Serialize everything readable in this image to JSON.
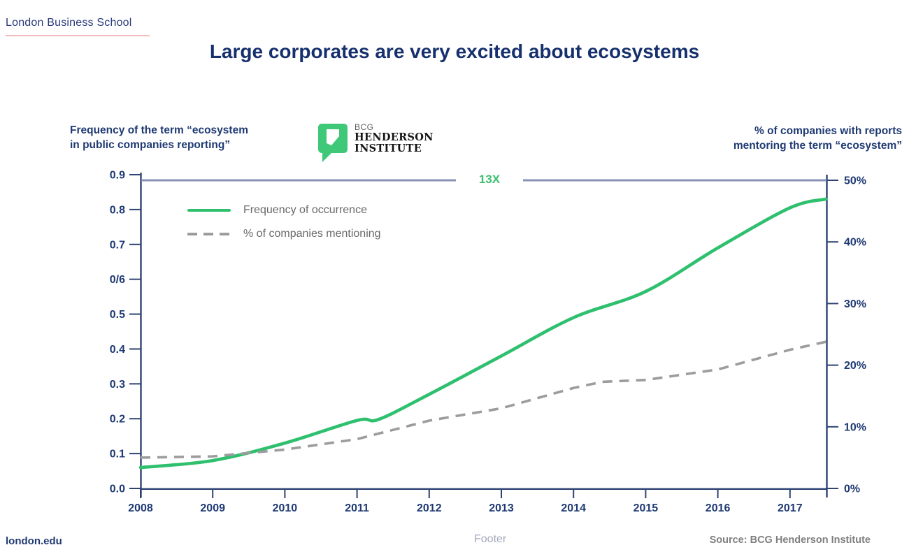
{
  "slide": {
    "brand": "London Business School",
    "title": "Large corporates are very excited about ecosystems"
  },
  "bhi_logo": {
    "icon": "bcg-henderson-institute-logo",
    "line1": "BCG",
    "line2": "HENDERSON",
    "line3": "INSTITUTE",
    "green": "#3ec878"
  },
  "footer": {
    "left": "london.edu",
    "center": "Footer",
    "right": "Source: BCG Henderson Institute"
  },
  "colors": {
    "axis": "#2e4372",
    "tick_label": "#1f3a73",
    "bracket_line": "#8792b5",
    "legend_text": "#696969"
  },
  "chart_data": {
    "type": "line",
    "left_axis_title": [
      "Frequency of the term “ecosystem",
      "in public companies reporting”"
    ],
    "right_axis_title": [
      "% of companies with reports",
      "mentoring the term “ecosystem”"
    ],
    "annotation": {
      "text": "13X",
      "color": "#3cc06e"
    },
    "grid": false,
    "legend_position": "top-left-inside",
    "xlim": [
      2008,
      2017.5
    ],
    "x_ticks": [
      2008,
      2009,
      2010,
      2011,
      2012,
      2013,
      2014,
      2015,
      2016,
      2017
    ],
    "left_axis": {
      "lim": [
        0,
        0.9
      ],
      "tick_values": [
        0,
        0.1,
        0.2,
        0.3,
        0.4,
        0.5,
        0.6,
        0.7,
        0.8,
        0.9
      ],
      "tick_labels": [
        "0.0",
        "0.1",
        "0.2",
        "0.3",
        "0.4",
        "0.5",
        "0/6",
        "0.7",
        "0.8",
        "0.9"
      ]
    },
    "right_axis": {
      "lim": [
        0,
        50
      ],
      "tick_values": [
        0,
        10,
        20,
        30,
        40,
        50
      ],
      "tick_labels": [
        "0%",
        "10%",
        "20%",
        "30%",
        "40%",
        "50%"
      ]
    },
    "series": [
      {
        "name": "Frequency of occurrence",
        "axis": "left",
        "color": "#2fc06f",
        "style": "solid",
        "x": [
          2008,
          2009,
          2010,
          2011,
          2011.3,
          2012,
          2013,
          2014,
          2015,
          2016,
          2017,
          2017.5
        ],
        "y": [
          0.06,
          0.08,
          0.13,
          0.195,
          0.198,
          0.27,
          0.38,
          0.49,
          0.565,
          0.69,
          0.805,
          0.83
        ]
      },
      {
        "name": "% of companies mentioning",
        "axis": "right",
        "color": "#9c9c9c",
        "style": "dashed",
        "x": [
          2008,
          2009,
          2010,
          2011,
          2012,
          2013,
          2014,
          2014.4,
          2015,
          2016,
          2017,
          2017.5
        ],
        "y": [
          5.0,
          5.2,
          6.3,
          8.0,
          11.0,
          13.0,
          16.3,
          17.3,
          17.6,
          19.3,
          22.5,
          23.8
        ]
      }
    ]
  }
}
